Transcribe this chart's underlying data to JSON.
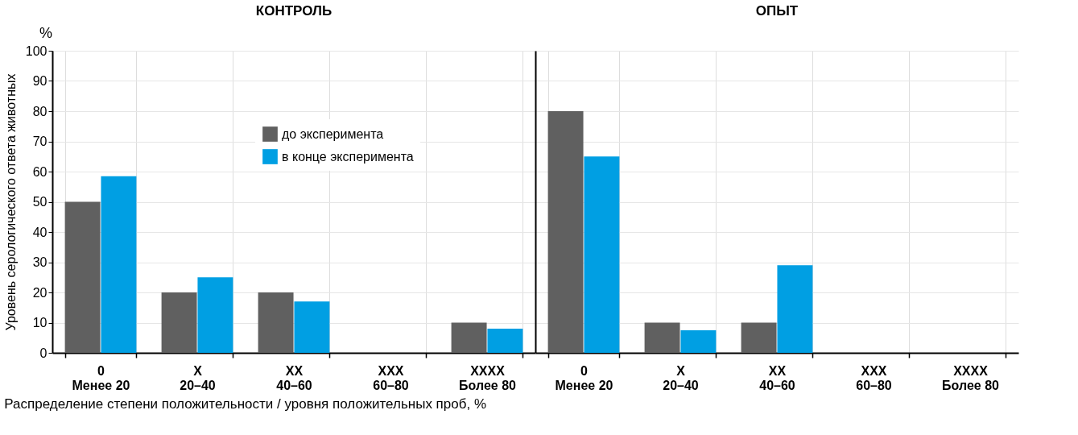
{
  "chart_data": [
    {
      "type": "bar",
      "title": "КОНТРОЛЬ",
      "xlabel": "Распределение степени положительности / уровня положительных проб, %",
      "ylabel": "Уровень серологического ответа животных",
      "annotations": [
        "%"
      ],
      "categories": [
        "0\nМенее 20",
        "X\n20–40",
        "XX\n40–60",
        "XXX\n60–80",
        "XXXX\nБолее 80"
      ],
      "series": [
        {
          "name": "до эксперимента",
          "color": "#606060",
          "values": [
            50,
            20,
            20,
            0,
            10
          ]
        },
        {
          "name": "в конце эксперимента",
          "color": "#009fe3",
          "values": [
            58.5,
            25,
            17,
            0,
            8
          ]
        }
      ],
      "ylim": [
        0,
        100
      ],
      "yticks": [
        0,
        10,
        20,
        30,
        40,
        50,
        60,
        70,
        80,
        90,
        100
      ],
      "grid": true,
      "legend": "top"
    },
    {
      "type": "bar",
      "title": "ОПЫТ",
      "categories": [
        "0\nМенее 20",
        "X\n20–40",
        "XX\n40–60",
        "XXX\n60–80",
        "XXXX\nБолее 80"
      ],
      "series": [
        {
          "color": "#606060",
          "values": [
            80,
            10,
            10,
            0,
            0
          ]
        },
        {
          "color": "#009fe3",
          "values": [
            65,
            7.5,
            29,
            0,
            0
          ]
        }
      ],
      "ylim": [
        0,
        100
      ],
      "yticks": [
        0,
        10,
        20,
        30,
        40,
        50,
        60,
        70,
        80,
        90,
        100
      ],
      "grid": true,
      "tick_labels": "x",
      "legend": false
    }
  ]
}
